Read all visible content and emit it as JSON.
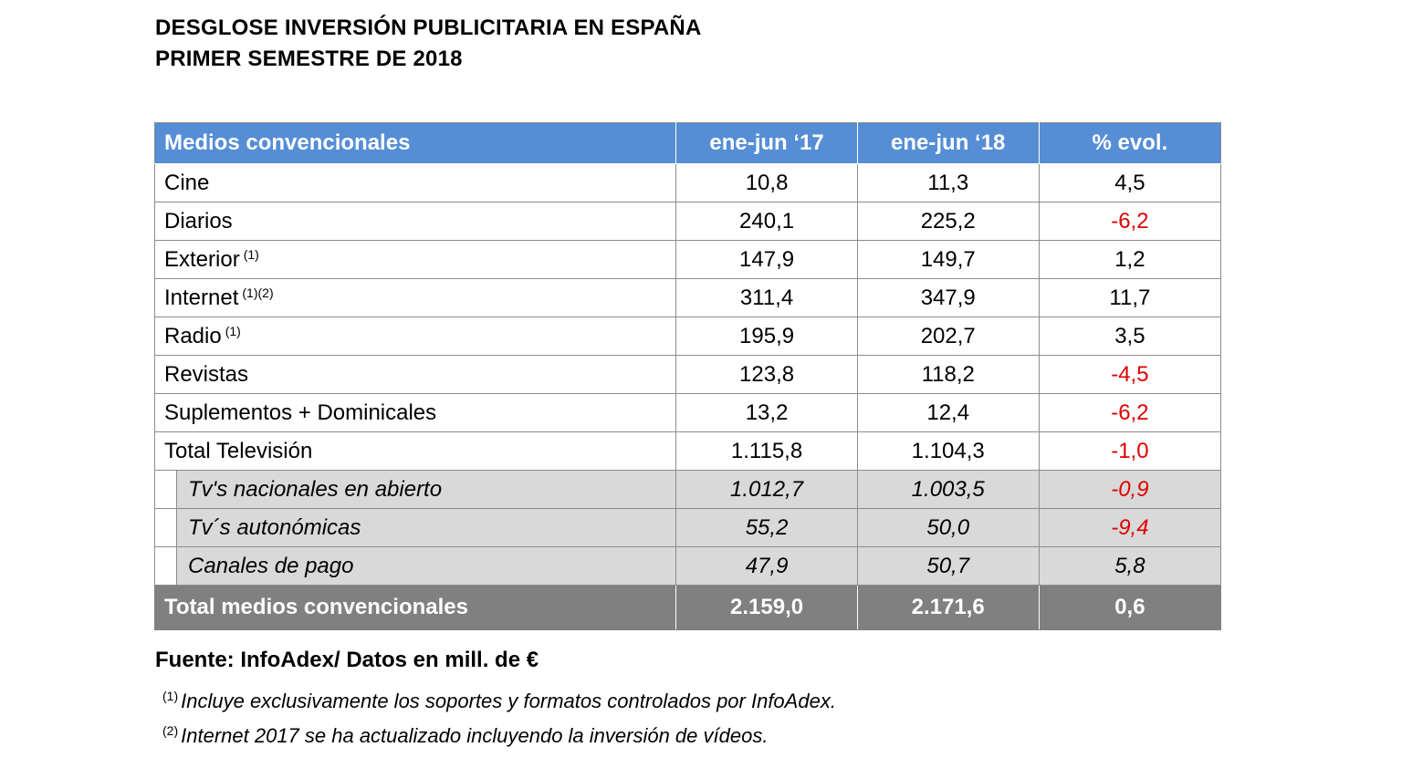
{
  "title": {
    "line1": "DESGLOSE INVERSIÓN PUBLICITARIA EN ESPAÑA",
    "line2": "PRIMER SEMESTRE DE 2018"
  },
  "table": {
    "headers": [
      "Medios convencionales",
      "ene-jun ‘17",
      "ene-jun ‘18",
      "% evol."
    ],
    "rows": [
      {
        "label": "Cine",
        "note": "",
        "v17": "10,8",
        "v18": "11,3",
        "evol": "4,5"
      },
      {
        "label": "Diarios",
        "note": "",
        "v17": "240,1",
        "v18": "225,2",
        "evol": "-6,2"
      },
      {
        "label": "Exterior",
        "note": "(1)",
        "v17": "147,9",
        "v18": "149,7",
        "evol": "1,2"
      },
      {
        "label": "Internet",
        "note": "(1)(2)",
        "v17": "311,4",
        "v18": "347,9",
        "evol": "11,7"
      },
      {
        "label": "Radio",
        "note": "(1)",
        "v17": "195,9",
        "v18": "202,7",
        "evol": "3,5"
      },
      {
        "label": "Revistas",
        "note": "",
        "v17": "123,8",
        "v18": "118,2",
        "evol": "-4,5"
      },
      {
        "label": "Suplementos + Dominicales",
        "note": "",
        "v17": "13,2",
        "v18": "12,4",
        "evol": "-6,2"
      },
      {
        "label": "Total Televisión",
        "note": "",
        "v17": "1.115,8",
        "v18": "1.104,3",
        "evol": "-1,0"
      }
    ],
    "subrows": [
      {
        "label": "Tv's nacionales en abierto",
        "v17": "1.012,7",
        "v18": "1.003,5",
        "evol": "-0,9"
      },
      {
        "label": "Tv´s autonómicas",
        "v17": "55,2",
        "v18": "50,0",
        "evol": "-9,4"
      },
      {
        "label": "Canales de pago",
        "v17": "47,9",
        "v18": "50,7",
        "evol": "5,8"
      }
    ],
    "total": {
      "label": "Total medios convencionales",
      "v17": "2.159,0",
      "v18": "2.171,6",
      "evol": "0,6"
    }
  },
  "source": "Fuente: InfoAdex/ Datos en mill. de €",
  "footnotes": [
    {
      "mark": "(1)",
      "text": "Incluye exclusivamente los soportes y formatos controlados por InfoAdex."
    },
    {
      "mark": "(2)",
      "text": "Internet 2017 se ha actualizado incluyendo la inversión de vídeos."
    }
  ],
  "colors": {
    "header_bg": "#558ed5",
    "total_bg": "#808080",
    "sub_bg": "#d9d9d9",
    "negative": "#e00000"
  }
}
